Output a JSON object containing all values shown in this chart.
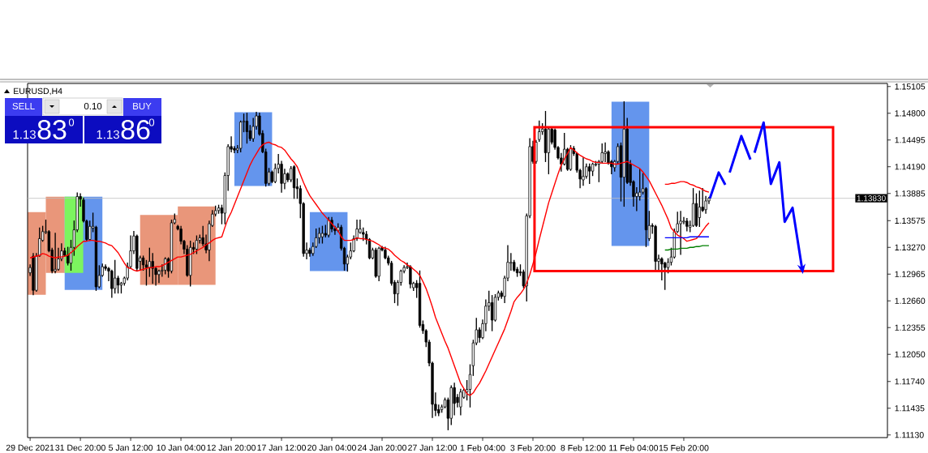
{
  "chart_data": {
    "type": "candlestick",
    "title": "EURUSD,H4",
    "categories": [
      "29 Dec 2021",
      null,
      null,
      null,
      null,
      null,
      null,
      null,
      null,
      null,
      null,
      null,
      null,
      null,
      null,
      null,
      "31 Dec 20:00",
      null,
      null,
      null,
      null,
      null,
      null,
      null,
      null,
      null,
      null,
      null,
      null,
      null,
      null,
      null,
      "5 Jan 12:00",
      null,
      null,
      null,
      null,
      null,
      null,
      null,
      null,
      null,
      null,
      null,
      null,
      null,
      null,
      null,
      "10 Jan 04:00",
      null,
      null,
      null,
      null,
      null,
      null,
      null,
      null,
      null,
      null,
      null,
      null,
      null,
      null,
      null,
      "12 Jan 20:00",
      null,
      null,
      null,
      null,
      null,
      null,
      null,
      null,
      null,
      null,
      null,
      null,
      null,
      null,
      null,
      "17 Jan 12:00",
      null,
      null,
      null,
      null,
      null,
      null,
      null,
      null,
      null,
      null,
      null,
      null,
      null,
      null,
      null,
      "20 Jan 04:00",
      null,
      null,
      null,
      null,
      null,
      null,
      null,
      null,
      null,
      null,
      null,
      null,
      null,
      null,
      null,
      "24 Jan 20:00",
      null,
      null,
      null,
      null,
      null,
      null,
      null,
      null,
      null,
      null,
      null,
      null,
      null,
      null,
      null,
      "27 Jan 12:00",
      null,
      null,
      null,
      null,
      null,
      null,
      null,
      null,
      null,
      null,
      null,
      null,
      null,
      null,
      null,
      "1 Feb 04:00",
      null,
      null,
      null,
      null,
      null,
      null,
      null,
      null,
      null,
      null,
      null,
      null,
      null,
      null,
      null,
      "3 Feb 20:00",
      null,
      null,
      null,
      null,
      null,
      null,
      null,
      null,
      null,
      null,
      null,
      null,
      null,
      null,
      null,
      "8 Feb 12:00",
      null,
      null,
      null,
      null,
      null,
      null,
      null,
      null,
      null,
      null,
      null,
      null,
      null,
      null,
      null,
      "11 Feb 04:00",
      null,
      null,
      null,
      null,
      null,
      null,
      null,
      null,
      null,
      null,
      null,
      null,
      null,
      null,
      null,
      "15 Feb 20:00",
      null,
      null,
      null,
      null,
      null,
      null,
      null,
      null
    ],
    "ohlc": [
      [
        1.1298,
        1.1307,
        1.1295,
        1.1304
      ],
      [
        1.1317,
        1.132,
        1.1273,
        1.1278
      ],
      [
        1.1278,
        1.132,
        1.1277,
        1.1317
      ],
      [
        1.1317,
        1.1349,
        1.1317,
        1.1337
      ],
      [
        1.1335,
        1.1351,
        1.1334,
        1.1345
      ],
      [
        1.1344,
        1.1358,
        1.1343,
        1.1345
      ],
      [
        1.1345,
        1.1346,
        1.1322,
        1.1323
      ],
      [
        1.1324,
        1.1326,
        1.1298,
        1.13
      ],
      [
        1.13,
        1.1343,
        1.1298,
        1.1302
      ],
      [
        1.1302,
        1.1326,
        1.1301,
        1.1314
      ],
      [
        1.1314,
        1.1331,
        1.1312,
        1.1323
      ],
      [
        1.1323,
        1.1326,
        1.1317,
        1.1318
      ],
      [
        1.1318,
        1.1327,
        1.1307,
        1.1309
      ],
      [
        1.1309,
        1.1335,
        1.1301,
        1.1327
      ],
      [
        1.1327,
        1.1357,
        1.1318,
        1.1347
      ],
      [
        1.1347,
        1.1389,
        1.1345,
        1.1385
      ],
      [
        1.1385,
        1.1388,
        1.1374,
        1.1382
      ],
      [
        1.1381,
        1.1383,
        1.1356,
        1.1357
      ],
      [
        1.1357,
        1.1358,
        1.1335,
        1.1336
      ],
      [
        1.1336,
        1.1357,
        1.1335,
        1.1351
      ],
      [
        1.1349,
        1.1366,
        1.1345,
        1.1351
      ],
      [
        1.135,
        1.1351,
        1.1278,
        1.1282
      ],
      [
        1.1282,
        1.1306,
        1.1281,
        1.1295
      ],
      [
        1.1295,
        1.1308,
        1.1294,
        1.1305
      ],
      [
        1.1305,
        1.1307,
        1.1301,
        1.1303
      ],
      [
        1.1303,
        1.1304,
        1.1289,
        1.13
      ],
      [
        1.13,
        1.1301,
        1.127,
        1.128
      ],
      [
        1.128,
        1.1312,
        1.1275,
        1.1292
      ],
      [
        1.1292,
        1.1294,
        1.1275,
        1.1284
      ],
      [
        1.1284,
        1.1287,
        1.1275,
        1.1286
      ],
      [
        1.1286,
        1.1293,
        1.1284,
        1.1292
      ],
      [
        1.1292,
        1.1309,
        1.129,
        1.1305
      ],
      [
        1.1305,
        1.134,
        1.1303,
        1.1323
      ],
      [
        1.1323,
        1.1345,
        1.132,
        1.134
      ],
      [
        1.134,
        1.1341,
        1.1301,
        1.1303
      ],
      [
        1.1311,
        1.1317,
        1.1301,
        1.1315
      ],
      [
        1.1315,
        1.1317,
        1.1301,
        1.1307
      ],
      [
        1.1307,
        1.1312,
        1.1284,
        1.1304
      ],
      [
        1.1304,
        1.1326,
        1.1294,
        1.1311
      ],
      [
        1.1311,
        1.132,
        1.1286,
        1.1303
      ],
      [
        1.1303,
        1.1304,
        1.1284,
        1.1296
      ],
      [
        1.1296,
        1.1301,
        1.1287,
        1.13
      ],
      [
        1.13,
        1.1307,
        1.1294,
        1.1301
      ],
      [
        1.1301,
        1.1315,
        1.1297,
        1.1314
      ],
      [
        1.1314,
        1.1315,
        1.1293,
        1.13
      ],
      [
        1.13,
        1.1358,
        1.1298,
        1.1355
      ],
      [
        1.1355,
        1.1365,
        1.1354,
        1.1359
      ],
      [
        1.1351,
        1.1352,
        1.1347,
        1.1348
      ],
      [
        1.1348,
        1.1351,
        1.1331,
        1.1334
      ],
      [
        1.1334,
        1.1335,
        1.132,
        1.1325
      ],
      [
        1.1325,
        1.1329,
        1.1294,
        1.1295
      ],
      [
        1.1295,
        1.1334,
        1.1283,
        1.1327
      ],
      [
        1.1327,
        1.1332,
        1.132,
        1.1325
      ],
      [
        1.1325,
        1.134,
        1.132,
        1.1335
      ],
      [
        1.1335,
        1.1341,
        1.1332,
        1.1338
      ],
      [
        1.1338,
        1.1351,
        1.1329,
        1.1331
      ],
      [
        1.1331,
        1.1341,
        1.1321,
        1.1324
      ],
      [
        1.1324,
        1.1357,
        1.1312,
        1.1354
      ],
      [
        1.1352,
        1.1369,
        1.1351,
        1.1365
      ],
      [
        1.1365,
        1.1374,
        1.1363,
        1.1369
      ],
      [
        1.1369,
        1.1375,
        1.1366,
        1.1372
      ],
      [
        1.1372,
        1.1375,
        1.1354,
        1.1366
      ],
      [
        1.1366,
        1.1412,
        1.1354,
        1.1409
      ],
      [
        1.1409,
        1.1444,
        1.1392,
        1.1442
      ],
      [
        1.1442,
        1.1453,
        1.1436,
        1.1439
      ],
      [
        1.144,
        1.1442,
        1.1435,
        1.1438
      ],
      [
        1.1438,
        1.1443,
        1.1435,
        1.144
      ],
      [
        1.144,
        1.1471,
        1.1436,
        1.147
      ],
      [
        1.147,
        1.1479,
        1.1459,
        1.1471
      ],
      [
        1.1471,
        1.148,
        1.1446,
        1.1459
      ],
      [
        1.146,
        1.1466,
        1.1449,
        1.1451
      ],
      [
        1.1451,
        1.1474,
        1.1448,
        1.1465
      ],
      [
        1.1465,
        1.1481,
        1.1462,
        1.1477
      ],
      [
        1.1477,
        1.148,
        1.1455,
        1.1456
      ],
      [
        1.1457,
        1.146,
        1.1435,
        1.1436
      ],
      [
        1.1436,
        1.1439,
        1.1397,
        1.14
      ],
      [
        1.14,
        1.1417,
        1.1398,
        1.1413
      ],
      [
        1.1413,
        1.1414,
        1.1401,
        1.1402
      ],
      [
        1.1402,
        1.1422,
        1.1401,
        1.1417
      ],
      [
        1.1417,
        1.1433,
        1.1412,
        1.1422
      ],
      [
        1.1422,
        1.1425,
        1.139,
        1.14
      ],
      [
        1.14,
        1.1416,
        1.1394,
        1.1411
      ],
      [
        1.1411,
        1.1412,
        1.1402,
        1.1404
      ],
      [
        1.1404,
        1.1419,
        1.1402,
        1.1417
      ],
      [
        1.1419,
        1.142,
        1.1383,
        1.1395
      ],
      [
        1.1396,
        1.1405,
        1.1383,
        1.1394
      ],
      [
        1.1394,
        1.1397,
        1.1361,
        1.1377
      ],
      [
        1.1377,
        1.1378,
        1.1317,
        1.132
      ],
      [
        1.132,
        1.1332,
        1.1314,
        1.1324
      ],
      [
        1.1324,
        1.1326,
        1.1317,
        1.132
      ],
      [
        1.132,
        1.1332,
        1.1318,
        1.1328
      ],
      [
        1.1328,
        1.1348,
        1.1327,
        1.1338
      ],
      [
        1.1338,
        1.1349,
        1.1332,
        1.1343
      ],
      [
        1.1339,
        1.1351,
        1.1332,
        1.1343
      ],
      [
        1.1343,
        1.1352,
        1.1339,
        1.1341
      ],
      [
        1.1341,
        1.1361,
        1.1339,
        1.1358
      ],
      [
        1.1358,
        1.1361,
        1.1345,
        1.1348
      ],
      [
        1.1348,
        1.1351,
        1.1342,
        1.1346
      ],
      [
        1.1346,
        1.1354,
        1.1345,
        1.135
      ],
      [
        1.135,
        1.1352,
        1.1324,
        1.1326
      ],
      [
        1.1326,
        1.1327,
        1.1301,
        1.1308
      ],
      [
        1.1308,
        1.1318,
        1.13,
        1.1316
      ],
      [
        1.1316,
        1.1332,
        1.1314,
        1.1323
      ],
      [
        1.1323,
        1.134,
        1.1322,
        1.1337
      ],
      [
        1.1337,
        1.1358,
        1.1335,
        1.1348
      ],
      [
        1.1344,
        1.1358,
        1.1343,
        1.1348
      ],
      [
        1.1344,
        1.1349,
        1.1335,
        1.1342
      ],
      [
        1.1342,
        1.1345,
        1.1331,
        1.1336
      ],
      [
        1.1336,
        1.1337,
        1.1314,
        1.1315
      ],
      [
        1.1315,
        1.1326,
        1.1314,
        1.1324
      ],
      [
        1.1324,
        1.1326,
        1.1293,
        1.1294
      ],
      [
        1.1294,
        1.1327,
        1.1289,
        1.1326
      ],
      [
        1.1327,
        1.1328,
        1.1323,
        1.1324
      ],
      [
        1.1324,
        1.1327,
        1.1314,
        1.1315
      ],
      [
        1.1315,
        1.1317,
        1.1307,
        1.1309
      ],
      [
        1.1309,
        1.1311,
        1.1284,
        1.1286
      ],
      [
        1.1287,
        1.1289,
        1.1264,
        1.1274
      ],
      [
        1.1274,
        1.1289,
        1.1261,
        1.1287
      ],
      [
        1.1287,
        1.1301,
        1.1284,
        1.13
      ],
      [
        1.13,
        1.1306,
        1.1298,
        1.1304
      ],
      [
        1.1304,
        1.1309,
        1.1303,
        1.1305
      ],
      [
        1.1305,
        1.1306,
        1.1281,
        1.1285
      ],
      [
        1.1281,
        1.1287,
        1.1278,
        1.1286
      ],
      [
        1.1286,
        1.1289,
        1.127,
        1.1281
      ],
      [
        1.1286,
        1.13,
        1.1236,
        1.1238
      ],
      [
        1.1239,
        1.1243,
        1.1229,
        1.1232
      ],
      [
        1.1232,
        1.1233,
        1.1214,
        1.1219
      ],
      [
        1.1219,
        1.1221,
        1.1192,
        1.1195
      ],
      [
        1.1195,
        1.1196,
        1.1133,
        1.1148
      ],
      [
        1.1148,
        1.1161,
        1.1135,
        1.1141
      ],
      [
        1.1142,
        1.1147,
        1.1135,
        1.1138
      ],
      [
        1.1142,
        1.1147,
        1.1139,
        1.1145
      ],
      [
        1.1145,
        1.1155,
        1.1144,
        1.1153
      ],
      [
        1.1153,
        1.1155,
        1.1119,
        1.1132
      ],
      [
        1.1132,
        1.1169,
        1.1125,
        1.1167
      ],
      [
        1.1167,
        1.1172,
        1.1136,
        1.1149
      ],
      [
        1.1156,
        1.1159,
        1.1145,
        1.115
      ],
      [
        1.1145,
        1.1165,
        1.1136,
        1.1162
      ],
      [
        1.1156,
        1.1165,
        1.1155,
        1.1164
      ],
      [
        1.1162,
        1.1175,
        1.1153,
        1.1165
      ],
      [
        1.1165,
        1.1193,
        1.1145,
        1.1182
      ],
      [
        1.1192,
        1.1221,
        1.1181,
        1.1218
      ],
      [
        1.1218,
        1.1246,
        1.1216,
        1.1233
      ],
      [
        1.1233,
        1.1235,
        1.1219,
        1.1224
      ],
      [
        1.1224,
        1.1244,
        1.1223,
        1.124
      ],
      [
        1.124,
        1.1267,
        1.1232,
        1.126
      ],
      [
        1.126,
        1.1277,
        1.1255,
        1.1264
      ],
      [
        1.1264,
        1.1272,
        1.1232,
        1.1244
      ],
      [
        1.1244,
        1.1273,
        1.1243,
        1.127
      ],
      [
        1.127,
        1.1277,
        1.1267,
        1.1275
      ],
      [
        1.1275,
        1.1277,
        1.1269,
        1.1271
      ],
      [
        1.1271,
        1.1294,
        1.1264,
        1.1292
      ],
      [
        1.1292,
        1.1329,
        1.1289,
        1.131
      ],
      [
        1.1309,
        1.132,
        1.1301,
        1.131
      ],
      [
        1.131,
        1.1312,
        1.13,
        1.1301
      ],
      [
        1.1302,
        1.1304,
        1.1294,
        1.1298
      ],
      [
        1.1299,
        1.1307,
        1.1295,
        1.1298
      ],
      [
        1.1299,
        1.1301,
        1.1281,
        1.1283
      ],
      [
        1.1283,
        1.1365,
        1.1266,
        1.1363
      ],
      [
        1.1363,
        1.1451,
        1.1361,
        1.1442
      ],
      [
        1.1442,
        1.1448,
        1.1423,
        1.1425
      ],
      [
        1.1425,
        1.1449,
        1.1423,
        1.1447
      ],
      [
        1.145,
        1.1471,
        1.1448,
        1.1459
      ],
      [
        1.1459,
        1.1468,
        1.1456,
        1.1462
      ],
      [
        1.1462,
        1.1482,
        1.1425,
        1.1435
      ],
      [
        1.1435,
        1.1463,
        1.1411,
        1.1462
      ],
      [
        1.1462,
        1.1463,
        1.1445,
        1.1447
      ],
      [
        1.1461,
        1.1462,
        1.1439,
        1.1441
      ],
      [
        1.1441,
        1.1442,
        1.1428,
        1.1429
      ],
      [
        1.1429,
        1.1434,
        1.1414,
        1.1422
      ],
      [
        1.1422,
        1.1457,
        1.1421,
        1.1439
      ],
      [
        1.1439,
        1.144,
        1.1415,
        1.1416
      ],
      [
        1.1416,
        1.1443,
        1.1415,
        1.144
      ],
      [
        1.144,
        1.1442,
        1.1432,
        1.1434
      ],
      [
        1.1434,
        1.1435,
        1.1413,
        1.1415
      ],
      [
        1.1415,
        1.1416,
        1.1395,
        1.1405
      ],
      [
        1.1404,
        1.1429,
        1.1398,
        1.1408
      ],
      [
        1.1408,
        1.1422,
        1.1406,
        1.1419
      ],
      [
        1.1419,
        1.1422,
        1.14,
        1.1414
      ],
      [
        1.1414,
        1.1423,
        1.1409,
        1.1422
      ],
      [
        1.1421,
        1.1425,
        1.142,
        1.1422
      ],
      [
        1.1422,
        1.1426,
        1.1402,
        1.1425
      ],
      [
        1.1425,
        1.1445,
        1.1423,
        1.1435
      ],
      [
        1.1434,
        1.1446,
        1.1425,
        1.1436
      ],
      [
        1.1436,
        1.1437,
        1.1422,
        1.1423
      ],
      [
        1.1425,
        1.1426,
        1.1411,
        1.1419
      ],
      [
        1.1418,
        1.1426,
        1.1414,
        1.1425
      ],
      [
        1.1425,
        1.1445,
        1.1423,
        1.1442
      ],
      [
        1.1443,
        1.1446,
        1.138,
        1.1407
      ],
      [
        1.1407,
        1.1493,
        1.1374,
        1.1462
      ],
      [
        1.1462,
        1.1474,
        1.14,
        1.1401
      ],
      [
        1.1422,
        1.1426,
        1.1398,
        1.1401
      ],
      [
        1.1402,
        1.1403,
        1.1374,
        1.1385
      ],
      [
        1.1385,
        1.1395,
        1.1369,
        1.1389
      ],
      [
        1.1385,
        1.1416,
        1.1381,
        1.139
      ],
      [
        1.139,
        1.1411,
        1.1388,
        1.1394
      ],
      [
        1.1394,
        1.1395,
        1.1328,
        1.1347
      ],
      [
        1.1337,
        1.1368,
        1.1335,
        1.1352
      ],
      [
        1.1352,
        1.1354,
        1.1343,
        1.1351
      ],
      [
        1.1351,
        1.1352,
        1.1301,
        1.1311
      ],
      [
        1.1311,
        1.1318,
        1.1301,
        1.1314
      ],
      [
        1.1314,
        1.1315,
        1.129,
        1.1308
      ],
      [
        1.1309,
        1.131,
        1.1279,
        1.1304
      ],
      [
        1.1304,
        1.1314,
        1.1298,
        1.131
      ],
      [
        1.131,
        1.1326,
        1.1307,
        1.1316
      ],
      [
        1.1316,
        1.1348,
        1.1315,
        1.1345
      ],
      [
        1.1345,
        1.1367,
        1.1344,
        1.1354
      ],
      [
        1.1354,
        1.1368,
        1.1319,
        1.1357
      ],
      [
        1.1356,
        1.1361,
        1.1354,
        1.1357
      ],
      [
        1.1357,
        1.136,
        1.1346,
        1.1351
      ],
      [
        1.135,
        1.1357,
        1.1345,
        1.1352
      ],
      [
        1.1352,
        1.1394,
        1.1351,
        1.1377
      ],
      [
        1.1377,
        1.1388,
        1.1351,
        1.1352
      ],
      [
        1.1361,
        1.1391,
        1.1351,
        1.1373
      ],
      [
        1.1373,
        1.1394,
        1.1368,
        1.1369
      ],
      [
        1.137,
        1.1385,
        1.1366,
        1.138
      ],
      [
        1.138,
        1.1384,
        1.1377,
        1.1383
      ]
    ],
    "series": [
      {
        "type": "line",
        "color": "#ff0000",
        "values": [
          1.1315,
          1.1316,
          1.1317,
          1.1318,
          1.132,
          1.1319,
          1.1317,
          1.1316,
          1.1315,
          1.1316,
          1.1316,
          1.1317,
          1.1318,
          1.1321,
          1.1324,
          1.1328,
          1.1331,
          1.1334,
          1.1334,
          1.1335,
          1.1335,
          1.1334,
          1.1334,
          1.1333,
          1.1332,
          1.133,
          1.1329,
          1.1325,
          1.1321,
          1.1315,
          1.1309,
          1.1304,
          1.1303,
          1.1301,
          1.13,
          1.1301,
          1.1302,
          1.1303,
          1.1304,
          1.1304,
          1.1305,
          1.1305,
          1.1306,
          1.1308,
          1.131,
          1.1312,
          1.1314,
          1.1316,
          1.1316,
          1.1317,
          1.1318,
          1.1319,
          1.1321,
          1.1323,
          1.1325,
          1.1327,
          1.133,
          1.1332,
          1.1335,
          1.1337,
          1.1338,
          1.1339,
          1.135,
          1.136,
          1.1367,
          1.1376,
          1.1385,
          1.1394,
          1.1403,
          1.1412,
          1.1421,
          1.1428,
          1.1434,
          1.144,
          1.1444,
          1.1446,
          1.1447,
          1.1445,
          1.1444,
          1.1442,
          1.1441,
          1.1438,
          1.1433,
          1.1428,
          1.1424,
          1.1419,
          1.141,
          1.1401,
          1.1393,
          1.1386,
          1.1381,
          1.1376,
          1.1371,
          1.1366,
          1.1362,
          1.1358,
          1.1354,
          1.135,
          1.1346,
          1.1339,
          1.1335,
          1.1335,
          1.1335,
          1.1336,
          1.1338,
          1.1337,
          1.1337,
          1.1336,
          1.1335,
          1.1334,
          1.1332,
          1.133,
          1.1327,
          1.1326,
          1.1325,
          1.1322,
          1.1318,
          1.1315,
          1.1312,
          1.131,
          1.1307,
          1.1305,
          1.1302,
          1.1299,
          1.1295,
          1.1288,
          1.128,
          1.127,
          1.1259,
          1.1247,
          1.1238,
          1.1229,
          1.122,
          1.1212,
          1.1202,
          1.1192,
          1.1182,
          1.1172,
          1.1166,
          1.116,
          1.1158,
          1.1161,
          1.1167,
          1.1172,
          1.1179,
          1.1186,
          1.1194,
          1.1202,
          1.121,
          1.1218,
          1.1226,
          1.1234,
          1.1244,
          1.1254,
          1.1265,
          1.127,
          1.1274,
          1.1279,
          1.1286,
          1.1296,
          1.1308,
          1.1321,
          1.1336,
          1.135,
          1.1364,
          1.1378,
          1.1389,
          1.14,
          1.1411,
          1.1421,
          1.1428,
          1.1434,
          1.1441,
          1.1438,
          1.1435,
          1.1432,
          1.143,
          1.1428,
          1.1427,
          1.1425,
          1.1424,
          1.1424,
          1.1423,
          1.1423,
          1.1423,
          1.1423,
          1.1422,
          1.1422,
          1.1423,
          1.1424,
          1.1425,
          1.1423,
          1.1421,
          1.1419,
          1.1417,
          1.1413,
          1.1408,
          1.1403,
          1.1396,
          1.1389,
          1.1382,
          1.1375,
          1.1367,
          1.1359,
          1.1349,
          1.1345,
          1.1341,
          1.1339,
          1.1337,
          1.1334,
          1.1335,
          1.1336,
          1.1337,
          1.1341,
          1.1346,
          1.1351,
          1.1355
        ]
      },
      {
        "type": "line",
        "color": "#ff0000",
        "values": [
          null,
          null,
          null,
          null,
          null,
          null,
          null,
          null,
          null,
          null,
          null,
          null,
          null,
          null,
          null,
          null,
          null,
          null,
          null,
          null,
          null,
          null,
          null,
          null,
          null,
          null,
          null,
          null,
          null,
          null,
          null,
          null,
          null,
          null,
          null,
          null,
          null,
          null,
          null,
          null,
          null,
          null,
          null,
          null,
          null,
          null,
          null,
          null,
          null,
          null,
          null,
          null,
          null,
          null,
          null,
          null,
          null,
          null,
          null,
          null,
          null,
          null,
          null,
          null,
          null,
          null,
          null,
          null,
          null,
          null,
          null,
          null,
          null,
          null,
          null,
          null,
          null,
          null,
          null,
          null,
          null,
          null,
          null,
          null,
          null,
          null,
          null,
          null,
          null,
          null,
          null,
          null,
          null,
          null,
          null,
          null,
          null,
          null,
          null,
          null,
          null,
          null,
          null,
          null,
          null,
          null,
          null,
          null,
          null,
          null,
          null,
          null,
          null,
          null,
          null,
          null,
          null,
          null,
          null,
          null,
          null,
          null,
          null,
          null,
          null,
          null,
          null,
          null,
          null,
          null,
          null,
          null,
          null,
          null,
          null,
          null,
          null,
          null,
          null,
          null,
          null,
          null,
          null,
          null,
          null,
          null,
          null,
          null,
          null,
          null,
          null,
          null,
          null,
          null,
          null,
          null,
          null,
          null,
          null,
          null,
          null,
          null,
          null,
          null,
          null,
          null,
          null,
          null,
          null,
          null,
          null,
          null,
          null,
          null,
          null,
          null,
          null,
          null,
          null,
          null,
          null,
          null,
          null,
          null,
          null,
          null,
          null,
          null,
          null,
          null,
          null,
          null,
          null,
          null,
          null,
          null,
          null,
          null,
          null,
          null,
          null,
          null,
          1.1399,
          1.1399,
          1.14,
          1.14,
          1.1401,
          1.1402,
          1.1402,
          1.1401,
          1.1399,
          1.1398,
          1.1396,
          1.1395,
          1.1393,
          1.1391,
          1.139
        ]
      },
      {
        "type": "line",
        "color": "#0000ff",
        "values": [
          null,
          null,
          null,
          null,
          null,
          null,
          null,
          null,
          null,
          null,
          null,
          null,
          null,
          null,
          null,
          null,
          null,
          null,
          null,
          null,
          null,
          null,
          null,
          null,
          null,
          null,
          null,
          null,
          null,
          null,
          null,
          null,
          null,
          null,
          null,
          null,
          null,
          null,
          null,
          null,
          null,
          null,
          null,
          null,
          null,
          null,
          null,
          null,
          null,
          null,
          null,
          null,
          null,
          null,
          null,
          null,
          null,
          null,
          null,
          null,
          null,
          null,
          null,
          null,
          null,
          null,
          null,
          null,
          null,
          null,
          null,
          null,
          null,
          null,
          null,
          null,
          null,
          null,
          null,
          null,
          null,
          null,
          null,
          null,
          null,
          null,
          null,
          null,
          null,
          null,
          null,
          null,
          null,
          null,
          null,
          null,
          null,
          null,
          null,
          null,
          null,
          null,
          null,
          null,
          null,
          null,
          null,
          null,
          null,
          null,
          null,
          null,
          null,
          null,
          null,
          null,
          null,
          null,
          null,
          null,
          null,
          null,
          null,
          null,
          null,
          null,
          null,
          null,
          null,
          null,
          null,
          null,
          null,
          null,
          null,
          null,
          null,
          null,
          null,
          null,
          null,
          null,
          null,
          null,
          null,
          null,
          null,
          null,
          null,
          null,
          null,
          null,
          null,
          null,
          null,
          null,
          null,
          null,
          null,
          null,
          null,
          null,
          null,
          null,
          null,
          null,
          null,
          null,
          null,
          null,
          null,
          null,
          null,
          null,
          null,
          null,
          null,
          null,
          null,
          null,
          null,
          null,
          null,
          null,
          null,
          null,
          null,
          null,
          null,
          null,
          null,
          null,
          null,
          null,
          null,
          null,
          null,
          null,
          null,
          null,
          null,
          null,
          1.1338,
          1.1338,
          1.1338,
          1.1338,
          1.1338,
          1.1338,
          1.1338,
          1.1338,
          1.1339,
          1.1339,
          1.1339,
          1.1339,
          1.1339,
          1.1339,
          1.1339
        ]
      },
      {
        "type": "line",
        "color": "#008000",
        "values": [
          null,
          null,
          null,
          null,
          null,
          null,
          null,
          null,
          null,
          null,
          null,
          null,
          null,
          null,
          null,
          null,
          null,
          null,
          null,
          null,
          null,
          null,
          null,
          null,
          null,
          null,
          null,
          null,
          null,
          null,
          null,
          null,
          null,
          null,
          null,
          null,
          null,
          null,
          null,
          null,
          null,
          null,
          null,
          null,
          null,
          null,
          null,
          null,
          null,
          null,
          null,
          null,
          null,
          null,
          null,
          null,
          null,
          null,
          null,
          null,
          null,
          null,
          null,
          null,
          null,
          null,
          null,
          null,
          null,
          null,
          null,
          null,
          null,
          null,
          null,
          null,
          null,
          null,
          null,
          null,
          null,
          null,
          null,
          null,
          null,
          null,
          null,
          null,
          null,
          null,
          null,
          null,
          null,
          null,
          null,
          null,
          null,
          null,
          null,
          null,
          null,
          null,
          null,
          null,
          null,
          null,
          null,
          null,
          null,
          null,
          null,
          null,
          null,
          null,
          null,
          null,
          null,
          null,
          null,
          null,
          null,
          null,
          null,
          null,
          null,
          null,
          null,
          null,
          null,
          null,
          null,
          null,
          null,
          null,
          null,
          null,
          null,
          null,
          null,
          null,
          null,
          null,
          null,
          null,
          null,
          null,
          null,
          null,
          null,
          null,
          null,
          null,
          null,
          null,
          null,
          null,
          null,
          null,
          null,
          null,
          null,
          null,
          null,
          null,
          null,
          null,
          null,
          null,
          null,
          null,
          null,
          null,
          null,
          null,
          null,
          null,
          null,
          null,
          null,
          null,
          null,
          null,
          null,
          null,
          null,
          null,
          null,
          null,
          null,
          null,
          null,
          null,
          null,
          null,
          null,
          null,
          null,
          null,
          null,
          null,
          null,
          null,
          1.1324,
          1.1324,
          1.1325,
          1.1325,
          1.1325,
          1.1326,
          1.1326,
          1.1326,
          1.1327,
          1.1327,
          1.1328,
          1.1328,
          1.1329,
          1.1329,
          1.1329
        ]
      }
    ],
    "ylim": [
      1.111,
      1.1514
    ],
    "yticks": [
      1.15105,
      {
        "value": 1.148,
        "label": "1.14800"
      },
      1.14495,
      {
        "value": 1.1419,
        "label": "1.14190"
      },
      1.13885,
      1.13575,
      {
        "value": 1.1327,
        "label": "1.13270"
      },
      1.12965,
      {
        "value": 1.1266,
        "label": "1.12660"
      },
      1.12355,
      {
        "value": 1.1205,
        "label": "1.12050"
      },
      {
        "value": 1.1174,
        "label": "1.11740"
      },
      1.11435,
      {
        "value": 1.1113,
        "label": "1.11130"
      }
    ],
    "ref_lines": [
      {
        "axis": "y",
        "value": 1.1383,
        "label": "1.13830",
        "color": "#c0c0c0"
      }
    ],
    "annotations": [
      "SELL",
      "0.10",
      "BUY",
      "1.13",
      "83",
      "0",
      "1.13",
      "86",
      "0"
    ]
  }
}
